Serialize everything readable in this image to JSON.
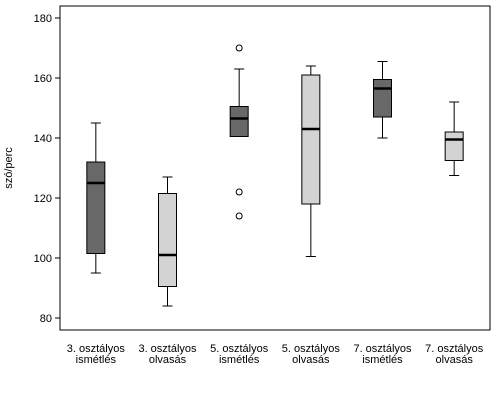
{
  "chart_data": {
    "type": "boxplot",
    "title": "",
    "xlabel": "",
    "ylabel": "szó/perc",
    "ylim": [
      76,
      184
    ],
    "yticks": [
      80,
      100,
      120,
      140,
      160,
      180
    ],
    "grid": false,
    "legend": "none",
    "categories": [
      [
        "3. osztályos",
        "ismétlés"
      ],
      [
        "3. osztályos",
        "olvasás"
      ],
      [
        "5. osztályos",
        "ismétlés"
      ],
      [
        "5. osztályos",
        "olvasás"
      ],
      [
        "7. osztályos",
        "ismétlés"
      ],
      [
        "7. osztályos",
        "olvasás"
      ]
    ],
    "boxes": [
      {
        "min": 95,
        "q1": 101.5,
        "median": 125,
        "q3": 132,
        "max": 145,
        "outliers": [],
        "color": "#686868"
      },
      {
        "min": 84,
        "q1": 90.5,
        "median": 101,
        "q3": 121.5,
        "max": 127,
        "outliers": [],
        "color": "#d3d3d3"
      },
      {
        "min": 140.5,
        "q1": 140.5,
        "median": 146.5,
        "q3": 150.5,
        "max": 163,
        "outliers": [
          170,
          122,
          114
        ],
        "color": "#686868"
      },
      {
        "min": 100.5,
        "q1": 118,
        "median": 143,
        "q3": 161,
        "max": 164,
        "outliers": [],
        "color": "#d3d3d3"
      },
      {
        "min": 140,
        "q1": 147,
        "median": 156.5,
        "q3": 159.5,
        "max": 165.5,
        "outliers": [],
        "color": "#686868"
      },
      {
        "min": 127.5,
        "q1": 132.5,
        "median": 139.5,
        "q3": 142,
        "max": 152,
        "outliers": [],
        "color": "#d3d3d3"
      }
    ]
  }
}
